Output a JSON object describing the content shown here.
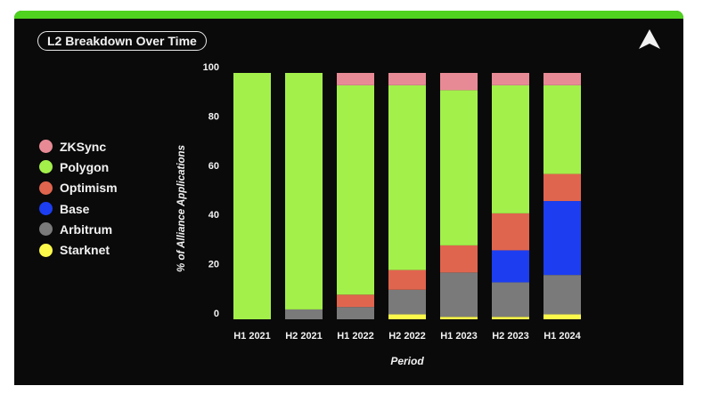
{
  "title": "L2 Breakdown Over Time",
  "colors": {
    "accent": "#4fd31f",
    "background": "#0a0a0a",
    "text": "#f2f2f2"
  },
  "icons": {
    "logo": "triangle-logo-icon"
  },
  "chart_data": {
    "type": "bar",
    "stacked": true,
    "xlabel": "Period",
    "ylabel": "% of Alliance Applications",
    "ylim": [
      0,
      100
    ],
    "yticks": [
      0,
      20,
      40,
      60,
      80,
      100
    ],
    "grid": false,
    "legend_position": "left",
    "categories": [
      "H1 2021",
      "H2 2021",
      "H1 2022",
      "H2 2022",
      "H1 2023",
      "H2 2023",
      "H1 2024"
    ],
    "series": [
      {
        "name": "Starknet",
        "color": "#fdf94b",
        "values": [
          0,
          0,
          0,
          2,
          1,
          1,
          2
        ]
      },
      {
        "name": "Arbitrum",
        "color": "#7a7a7a",
        "values": [
          0,
          4,
          5,
          10,
          18,
          14,
          16
        ]
      },
      {
        "name": "Base",
        "color": "#1c3ef0",
        "values": [
          0,
          0,
          0,
          0,
          0,
          13,
          30
        ]
      },
      {
        "name": "Optimism",
        "color": "#e0654e",
        "values": [
          0,
          0,
          5,
          8,
          11,
          15,
          11
        ]
      },
      {
        "name": "Polygon",
        "color": "#a3f04b",
        "values": [
          100,
          96,
          85,
          75,
          63,
          52,
          36
        ]
      },
      {
        "name": "ZKSync",
        "color": "#e88a96",
        "values": [
          0,
          0,
          5,
          5,
          7,
          5,
          5
        ]
      }
    ],
    "legend_order": [
      "ZKSync",
      "Polygon",
      "Optimism",
      "Base",
      "Arbitrum",
      "Starknet"
    ]
  }
}
